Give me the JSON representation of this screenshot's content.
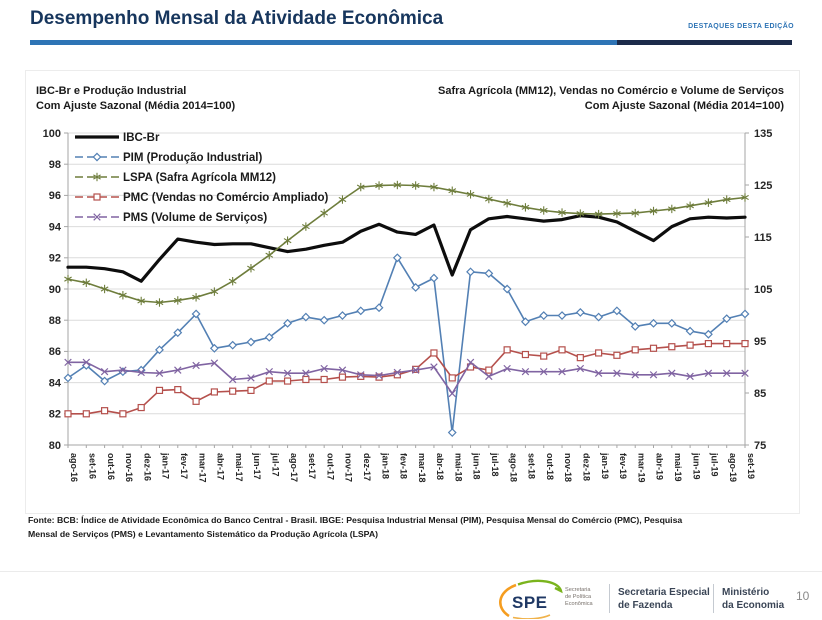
{
  "header": {
    "title": "Desempenho Mensal da Atividade Econômica",
    "edition_label": "DESTAQUES DESTA EDIÇÃO",
    "accent_color": "#2e74b5",
    "dark_color": "#1c2b4a"
  },
  "chart": {
    "left_title": [
      "IBC-Br e Produção Industrial",
      "Com Ajuste Sazonal (Média 2014=100)"
    ],
    "right_title": [
      "Safra Agrícola (MM12), Vendas no Comércio e Volume de Serviços",
      "Com Ajuste Sazonal (Média 2014=100)"
    ]
  },
  "chart_data": {
    "type": "line",
    "title": "Desempenho Mensal da Atividade Econômica",
    "grid": true,
    "legend_position": "top-left",
    "left_axis": {
      "min": 80,
      "max": 100,
      "step": 2
    },
    "right_axis": {
      "min": 75,
      "max": 135,
      "step": 10
    },
    "categories": [
      "ago-16",
      "set-16",
      "out-16",
      "nov-16",
      "dez-16",
      "jan-17",
      "fev-17",
      "mar-17",
      "abr-17",
      "mai-17",
      "jun-17",
      "jul-17",
      "ago-17",
      "set-17",
      "out-17",
      "nov-17",
      "dez-17",
      "jan-18",
      "fev-18",
      "mar-18",
      "abr-18",
      "mai-18",
      "jun-18",
      "jul-18",
      "ago-18",
      "set-18",
      "out-18",
      "nov-18",
      "dez-18",
      "jan-19",
      "fev-19",
      "mar-19",
      "abr-19",
      "mai-19",
      "jun-19",
      "jul-19",
      "ago-19",
      "set-19"
    ],
    "series": [
      {
        "name": "IBC-Br",
        "axis": "left",
        "color": "#0d0d0d",
        "marker": "none",
        "line_width": 3.2,
        "values": [
          91.4,
          91.4,
          91.3,
          91.1,
          90.5,
          91.9,
          93.2,
          93.0,
          92.85,
          92.9,
          92.9,
          92.65,
          92.4,
          92.55,
          92.8,
          93.0,
          93.7,
          94.15,
          93.65,
          93.5,
          94.1,
          90.9,
          93.8,
          94.5,
          94.65,
          94.5,
          94.35,
          94.45,
          94.7,
          94.6,
          94.3,
          93.7,
          93.1,
          94.0,
          94.5,
          94.6,
          94.55,
          94.6
        ]
      },
      {
        "name": "PIM (Produção Industrial)",
        "axis": "left",
        "color": "#5380b4",
        "marker": "diamond",
        "line_width": 1.6,
        "values": [
          84.3,
          85.1,
          84.1,
          84.7,
          84.8,
          86.1,
          87.2,
          88.4,
          86.2,
          86.4,
          86.6,
          86.9,
          87.8,
          88.2,
          88.0,
          88.3,
          88.6,
          88.8,
          92.0,
          90.1,
          90.7,
          80.8,
          91.1,
          91.0,
          90.0,
          87.9,
          88.3,
          88.3,
          88.5,
          88.2,
          88.6,
          87.6,
          87.8,
          87.8,
          87.3,
          87.1,
          88.1,
          88.4
        ]
      },
      {
        "name": "LSPA (Safra Agrícola MM12)",
        "axis": "right",
        "color": "#6e7d3c",
        "marker": "star",
        "line_width": 1.6,
        "values": [
          106.9,
          106.2,
          105.0,
          103.8,
          102.7,
          102.4,
          102.8,
          103.4,
          104.5,
          106.5,
          109.0,
          111.5,
          114.3,
          117.0,
          119.6,
          122.2,
          124.6,
          124.9,
          125.0,
          124.9,
          124.6,
          123.9,
          123.2,
          122.3,
          121.5,
          120.7,
          120.1,
          119.7,
          119.5,
          119.4,
          119.5,
          119.6,
          120.0,
          120.4,
          121.0,
          121.6,
          122.2,
          122.6
        ]
      },
      {
        "name": "PMC (Vendas no Comércio Ampliado)",
        "axis": "left",
        "color": "#b5504c",
        "marker": "square",
        "line_width": 1.6,
        "values": [
          82.0,
          82.0,
          82.2,
          82.0,
          82.4,
          83.5,
          83.55,
          82.8,
          83.4,
          83.45,
          83.5,
          84.1,
          84.1,
          84.2,
          84.2,
          84.35,
          84.4,
          84.35,
          84.5,
          84.85,
          85.9,
          84.3,
          85.0,
          84.8,
          86.1,
          85.8,
          85.7,
          86.1,
          85.6,
          85.9,
          85.75,
          86.1,
          86.2,
          86.3,
          86.4,
          86.5,
          86.5,
          86.5
        ]
      },
      {
        "name": "PMS (Volume de Serviços)",
        "axis": "left",
        "color": "#8064a2",
        "marker": "x",
        "line_width": 1.6,
        "values": [
          85.3,
          85.3,
          84.7,
          84.8,
          84.65,
          84.6,
          84.8,
          85.1,
          85.25,
          84.2,
          84.3,
          84.7,
          84.6,
          84.6,
          84.9,
          84.8,
          84.5,
          84.45,
          84.65,
          84.8,
          85.0,
          83.3,
          85.3,
          84.4,
          84.9,
          84.7,
          84.7,
          84.7,
          84.9,
          84.6,
          84.6,
          84.5,
          84.5,
          84.6,
          84.4,
          84.6,
          84.6,
          84.6
        ]
      }
    ]
  },
  "footer": {
    "source_line1": "Fonte: BCB: Índice de Atividade Econômica do Banco Central - Brasil. IBGE: Pesquisa Industrial Mensal (PIM), Pesquisa Mensal do Comércio (PMC), Pesquisa",
    "source_line2": "Mensal de Serviços (PMS) e Levantamento Sistemático da Produção Agrícola (LSPA)"
  },
  "footer_bar": {
    "spe_acronym": "SPE",
    "spe_caption": [
      "Secretaria",
      "de Política",
      "Econômica"
    ],
    "secretaria": [
      "Secretaria Especial",
      "de Fazenda"
    ],
    "ministerio": [
      "Ministério",
      "da Economia"
    ],
    "page_number": "10"
  }
}
